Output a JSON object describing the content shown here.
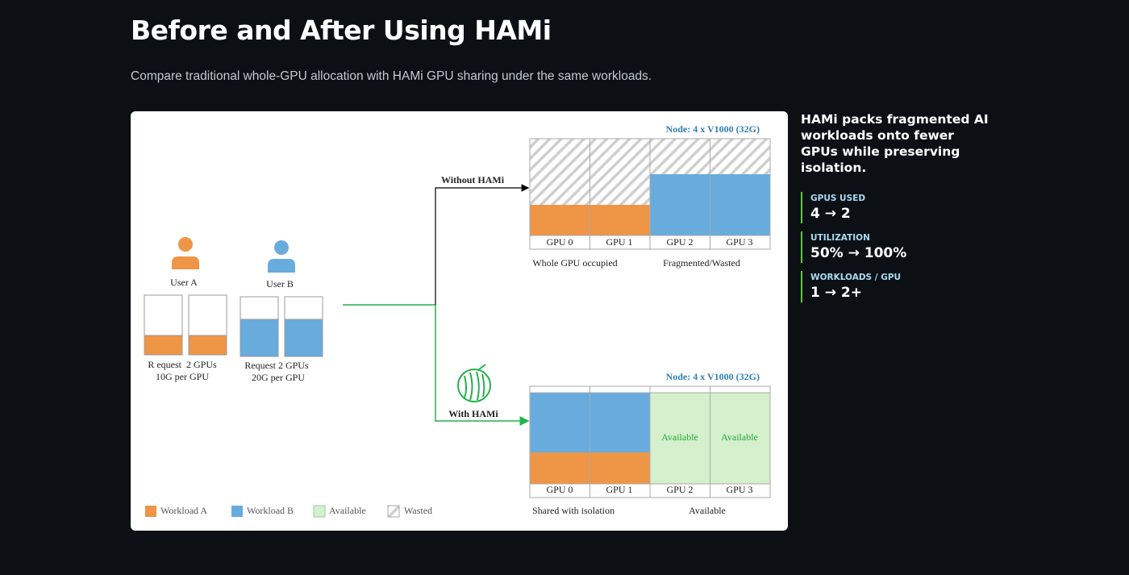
{
  "header": {
    "title": "Before and After Using HAMi",
    "subtitle": "Compare traditional whole-GPU allocation with HAMi GPU sharing under the same workloads."
  },
  "diagram": {
    "users": [
      {
        "label": "User A",
        "request": "R equest  2 GPUs",
        "memory": "10G per GPU"
      },
      {
        "label": "User B",
        "request": "Request 2 GPUs",
        "memory": "20G per GPU"
      }
    ],
    "without": {
      "label": "Without HAMi",
      "node": "Node: 4 x V1000 (32G)",
      "gpus": [
        "GPU 0",
        "GPU 1",
        "GPU 2",
        "GPU 3"
      ],
      "captions": [
        "Whole GPU occupied",
        "Fragmented/Wasted"
      ]
    },
    "with": {
      "label": "With HAMi",
      "node": "Node: 4 x V1000 (32G)",
      "gpus": [
        "GPU 0",
        "GPU 1",
        "GPU 2",
        "GPU 3"
      ],
      "available": [
        "Available",
        "Available"
      ],
      "captions": [
        "Shared with isolation",
        "Available"
      ]
    },
    "legend": [
      "Workload A",
      "Workload B",
      "Available",
      "Wasted"
    ]
  },
  "sidebar": {
    "headline": "HAMi packs fragmented AI workloads onto fewer GPUs while preserving isolation.",
    "stats": [
      {
        "label": "GPUS USED",
        "value": "4 → 2"
      },
      {
        "label": "UTILIZATION",
        "value": "50% → 100%"
      },
      {
        "label": "WORKLOADS / GPU",
        "value": "1 → 2+"
      }
    ]
  }
}
